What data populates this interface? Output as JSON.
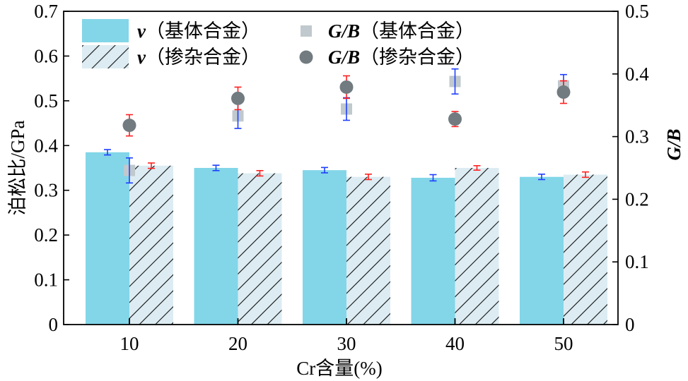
{
  "chart_data": {
    "type": "bar",
    "categories": [
      "10",
      "20",
      "30",
      "40",
      "50"
    ],
    "xlabel": "Cr含量(%)",
    "ylabel": "泊松比/GPa",
    "y2label": "G/B",
    "ylim": [
      0,
      0.7
    ],
    "y2lim": [
      0,
      0.5
    ],
    "yticks": [
      "0",
      "0.1",
      "0.2",
      "0.3",
      "0.4",
      "0.5",
      "0.6",
      "0.7"
    ],
    "y2ticks": [
      "0",
      "0.1",
      "0.2",
      "0.3",
      "0.4",
      "0.5"
    ],
    "grid": false,
    "legend_position": "top-left",
    "colors": {
      "base_bar": "#82d6e8",
      "doped_bar_fill": "#dcecf2",
      "hatch": "#111111",
      "gb_base_marker": "#c0c9cd",
      "gb_doped_marker": "#717b80",
      "err_blue": "#1f3fff",
      "err_red": "#ff2020"
    },
    "series": [
      {
        "name": "ν（基体合金）",
        "legend_symbol": "ν",
        "legend_text": "（基体合金）",
        "kind": "bar",
        "axis": "left",
        "values": [
          0.385,
          0.35,
          0.345,
          0.328,
          0.33
        ],
        "errors": [
          0.006,
          0.006,
          0.006,
          0.007,
          0.006
        ]
      },
      {
        "name": "ν（掺杂合金）",
        "legend_symbol": "ν",
        "legend_text": "（掺杂合金）",
        "kind": "bar-hatched",
        "axis": "left",
        "values": [
          0.355,
          0.338,
          0.33,
          0.35,
          0.335
        ],
        "errors": [
          0.006,
          0.006,
          0.006,
          0.005,
          0.006
        ]
      },
      {
        "name": "G/B（基体合金）",
        "legend_symbol": "G/B",
        "legend_text": "（基体合金）",
        "kind": "scatter-square",
        "axis": "right",
        "values": [
          0.246,
          0.333,
          0.344,
          0.388,
          0.381
        ],
        "errors": [
          0.02,
          0.02,
          0.018,
          0.02,
          0.018
        ]
      },
      {
        "name": "G/B（掺杂合金）",
        "legend_symbol": "G/B",
        "legend_text": "（掺杂合金）",
        "kind": "scatter-circle",
        "axis": "right",
        "values": [
          0.318,
          0.361,
          0.379,
          0.328,
          0.371
        ],
        "errors": [
          0.017,
          0.018,
          0.018,
          0.012,
          0.018
        ]
      }
    ]
  }
}
